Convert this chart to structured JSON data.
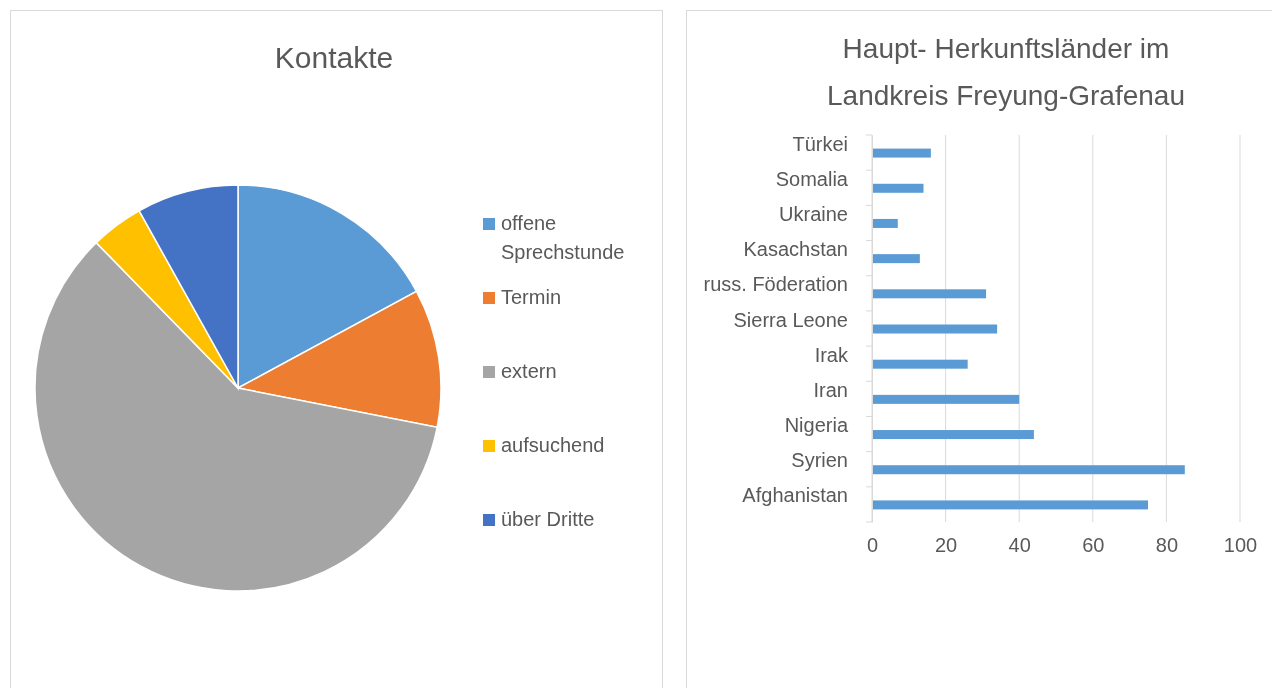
{
  "chart_data": [
    {
      "type": "pie",
      "title": "Kontakte",
      "categories": [
        "offene Sprechstunde",
        "Termin",
        "extern",
        "aufsuchend",
        "über Dritte"
      ],
      "values": [
        17.1,
        11,
        59.6,
        4.2,
        8.1
      ],
      "colors": [
        "#5b9bd5",
        "#ed7d31",
        "#a5a5a5",
        "#ffc000",
        "#4472c4"
      ],
      "legend": "right"
    },
    {
      "type": "bar",
      "orientation": "horizontal",
      "title": "Haupt- Herkunftsländer im Landkreis Freyung-Grafenau",
      "categories": [
        "Türkei",
        "Somalia",
        "Ukraine",
        "Kasachstan",
        "russ. Föderation",
        "Sierra Leone",
        "Irak",
        "Iran",
        "Nigeria",
        "Syrien",
        "Afghanistan"
      ],
      "values": [
        16,
        14,
        7,
        13,
        31,
        34,
        26,
        40,
        44,
        85,
        75
      ],
      "color": "#5b9bd5",
      "xlim": [
        0,
        100
      ],
      "xticks": [
        0,
        20,
        40,
        60,
        80,
        100
      ],
      "grid": "x"
    }
  ]
}
